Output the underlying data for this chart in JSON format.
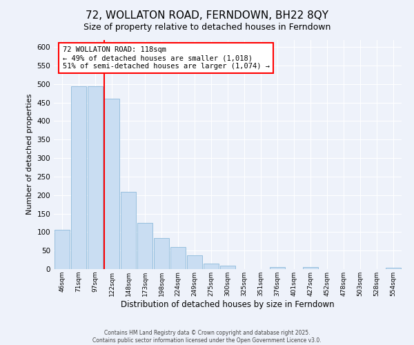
{
  "title": "72, WOLLATON ROAD, FERNDOWN, BH22 8QY",
  "subtitle": "Size of property relative to detached houses in Ferndown",
  "xlabel": "Distribution of detached houses by size in Ferndown",
  "ylabel": "Number of detached properties",
  "bar_labels": [
    "46sqm",
    "71sqm",
    "97sqm",
    "122sqm",
    "148sqm",
    "173sqm",
    "198sqm",
    "224sqm",
    "249sqm",
    "275sqm",
    "300sqm",
    "325sqm",
    "351sqm",
    "376sqm",
    "401sqm",
    "427sqm",
    "452sqm",
    "478sqm",
    "503sqm",
    "528sqm",
    "554sqm"
  ],
  "bar_values": [
    107,
    494,
    494,
    460,
    208,
    125,
    83,
    59,
    37,
    15,
    10,
    0,
    0,
    5,
    0,
    5,
    0,
    0,
    0,
    0,
    3
  ],
  "bar_color": "#c9ddf2",
  "bar_edge_color": "#7bafd4",
  "background_color": "#eef2fa",
  "grid_color": "#ffffff",
  "red_line_index": 3,
  "ylim": [
    0,
    620
  ],
  "yticks": [
    0,
    50,
    100,
    150,
    200,
    250,
    300,
    350,
    400,
    450,
    500,
    550,
    600
  ],
  "annotation_title": "72 WOLLATON ROAD: 118sqm",
  "annotation_line2": "← 49% of detached houses are smaller (1,018)",
  "annotation_line3": "51% of semi-detached houses are larger (1,074) →",
  "footer_line1": "Contains HM Land Registry data © Crown copyright and database right 2025.",
  "footer_line2": "Contains public sector information licensed under the Open Government Licence v3.0.",
  "title_fontsize": 11,
  "subtitle_fontsize": 9
}
